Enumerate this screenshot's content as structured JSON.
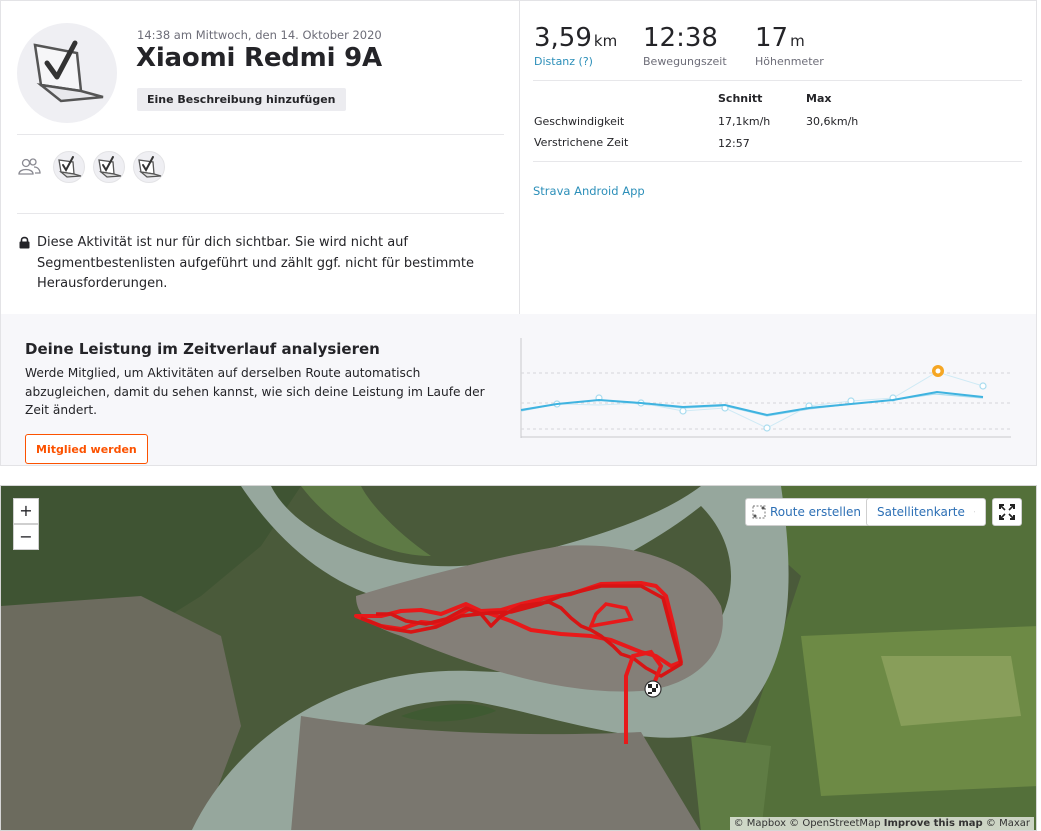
{
  "activity": {
    "datetime": "14:38 am Mittwoch, den 14. Oktober 2020",
    "title": "Xiaomi Redmi 9A",
    "description_button": "Eine Beschreibung hinzufügen",
    "privacy_text": "Diese Aktivität ist nur für dich sichtbar. Sie wird nicht auf Segmentbestenlisten aufgeführt und zählt ggf. nicht für bestimmte Herausforderungen."
  },
  "stats": {
    "distance_value": "3,59",
    "distance_unit": "km",
    "distance_label": "Distanz (?)",
    "moving_time_value": "12:38",
    "moving_time_label": "Bewegungszeit",
    "elevation_value": "17",
    "elevation_unit": "m",
    "elevation_label": "Höhenmeter"
  },
  "details_table": {
    "col_avg": "Schnitt",
    "col_max": "Max",
    "rows": [
      {
        "label": "Geschwindigkeit",
        "avg": "17,1km/h",
        "max": "30,6km/h"
      },
      {
        "label": "Verstrichene Zeit",
        "avg": "12:57",
        "max": ""
      }
    ]
  },
  "device_link": "Strava Android App",
  "analysis": {
    "title": "Deine Leistung im Zeitverlauf analysieren",
    "text": "Werde Mitglied, um Aktivitäten auf derselben Route automatisch abzugleichen, damit du sehen kannst, wie sich deine Leistung im Laufe der Zeit ändert.",
    "button": "Mitglied werden"
  },
  "trend_chart": {
    "colors": {
      "line": "#3fb3e0",
      "points": "#a9dcef",
      "highlight": "#f5a623"
    }
  },
  "map": {
    "zoom_in": "+",
    "zoom_out": "−",
    "route_button": "Route erstellen",
    "map_type_button": "Satellitenkarte",
    "attribution_prefix": "© Mapbox © OpenStreetMap",
    "attribution_improve": "Improve this map",
    "attribution_suffix": "© Maxar"
  },
  "colors": {
    "accent": "#fc5200",
    "link": "#2c8fb9",
    "route": "#e8191a"
  }
}
